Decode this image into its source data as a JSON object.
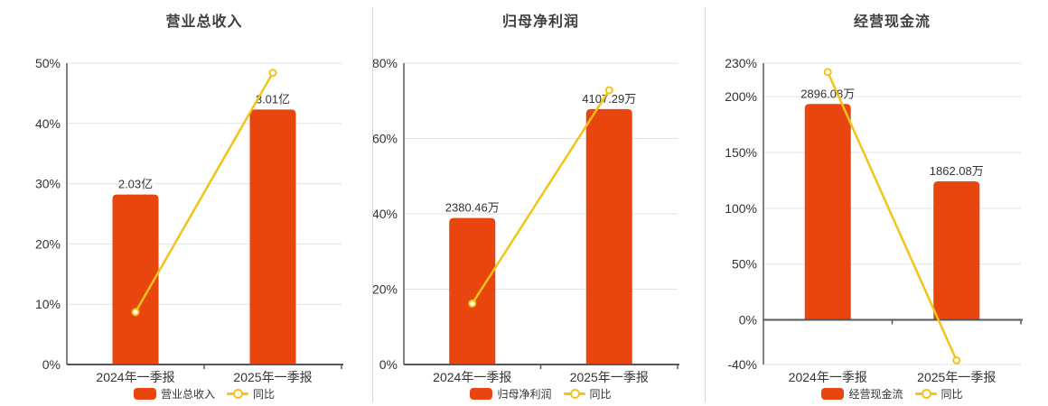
{
  "colors": {
    "bar": "#e8450f",
    "line": "#f2c318",
    "grid": "#e2e2ee",
    "axis": "#55585e",
    "text": "#333333",
    "title": "#3f3f3f",
    "separator": "#d6d6d6",
    "marker_fill": "#ffffff",
    "background": "#ffffff"
  },
  "chart_data": [
    {
      "type": "bar",
      "title": "营业总收入",
      "categories": [
        "2024年一季报",
        "2025年一季报"
      ],
      "bar_series": {
        "name": "营业总收入",
        "value_labels": [
          "2.03亿",
          "3.01亿"
        ],
        "display_axis_values": [
          28.2,
          42.3
        ]
      },
      "line_series": {
        "name": "同比",
        "values_pct": [
          8.7,
          48.4
        ]
      },
      "y_axis": {
        "min": 0,
        "max": 50,
        "ticks": [
          0,
          10,
          20,
          30,
          40,
          50
        ],
        "tick_suffix": "%"
      },
      "grid": true,
      "legend_position": "bottom"
    },
    {
      "type": "bar",
      "title": "归母净利润",
      "categories": [
        "2024年一季报",
        "2025年一季报"
      ],
      "bar_series": {
        "name": "归母净利润",
        "value_labels": [
          "2380.46万",
          "4107.29万"
        ],
        "display_axis_values": [
          38.9,
          67.8
        ]
      },
      "line_series": {
        "name": "同比",
        "values_pct": [
          16.2,
          72.8
        ]
      },
      "y_axis": {
        "min": 0,
        "max": 80,
        "ticks": [
          0,
          20,
          40,
          60,
          80
        ],
        "tick_suffix": "%"
      },
      "grid": true,
      "legend_position": "bottom"
    },
    {
      "type": "bar",
      "title": "经营现金流",
      "categories": [
        "2024年一季报",
        "2025年一季报"
      ],
      "bar_series": {
        "name": "经营现金流",
        "value_labels": [
          "2896.08万",
          "1862.08万"
        ],
        "display_axis_values": [
          193.4,
          124.1
        ]
      },
      "line_series": {
        "name": "同比",
        "values_pct": [
          222.0,
          -36.3
        ]
      },
      "y_axis": {
        "min": -40,
        "max": 230,
        "ticks": [
          -40,
          0,
          50,
          100,
          150,
          200,
          230
        ],
        "tick_suffix": "%"
      },
      "grid": true,
      "legend_position": "bottom"
    }
  ]
}
